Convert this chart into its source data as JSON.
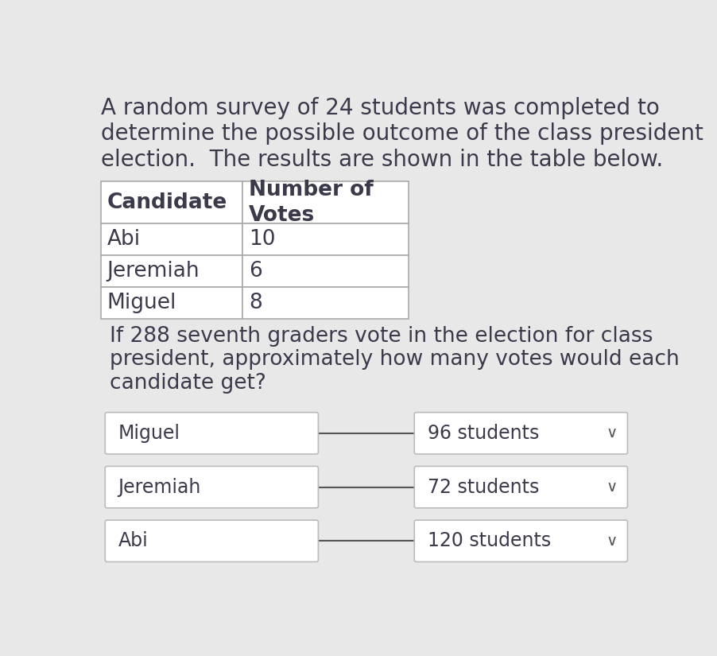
{
  "background_color": "#e8e8e8",
  "intro_text_lines": [
    "A random survey of 24 students was completed to",
    "determine the possible outcome of the class president",
    "election.  The results are shown in the table below."
  ],
  "table_headers": [
    "Candidate",
    "Number of\nVotes"
  ],
  "table_rows": [
    [
      "Abi",
      "10"
    ],
    [
      "Jeremiah",
      "6"
    ],
    [
      "Miguel",
      "8"
    ]
  ],
  "question_text_lines": [
    "If 288 seventh graders vote in the election for class",
    "president, approximately how many votes would each",
    "candidate get?"
  ],
  "matching_items": [
    {
      "left": "Miguel",
      "right": "96 students"
    },
    {
      "left": "Jeremiah",
      "right": "72 students"
    },
    {
      "left": "Abi",
      "right": "120 students"
    }
  ],
  "font_size_intro": 20,
  "font_size_table_header": 19,
  "font_size_table_data": 19,
  "font_size_question": 19,
  "font_size_matching": 17,
  "font_size_chevron": 14,
  "text_color": "#3a3a4a",
  "table_border_color": "#aaaaaa",
  "table_fill": "#ffffff",
  "box_fill_color": "#ffffff",
  "box_border_color": "#bbbbbb",
  "line_color": "#555555",
  "chevron_color": "#555555"
}
